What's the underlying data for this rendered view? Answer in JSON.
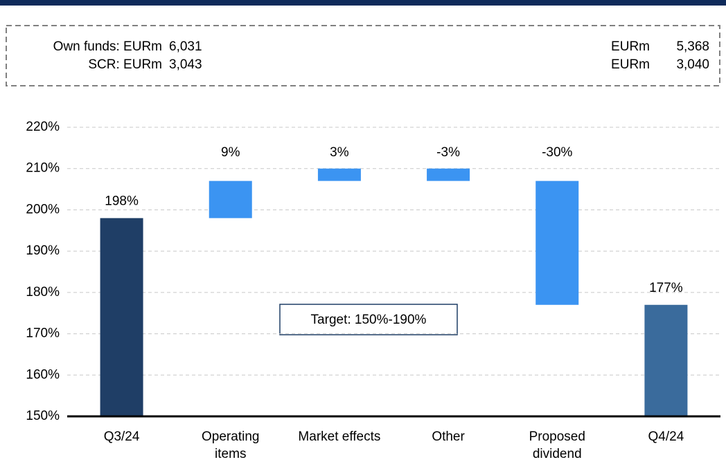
{
  "chart_data": {
    "type": "waterfall",
    "info_box": {
      "left": [
        {
          "label": "Own funds: EURm",
          "value": "6,031"
        },
        {
          "label": "SCR: EURm",
          "value": "3,043"
        }
      ],
      "right": [
        {
          "label": "EURm",
          "value": "5,368"
        },
        {
          "label": "EURm",
          "value": "3,040"
        }
      ]
    },
    "categories": [
      "Q3/24",
      "Operating\nitems",
      "Market effects",
      "Other",
      "Proposed\ndividend",
      "Q4/24"
    ],
    "values": [
      198,
      9,
      3,
      -3,
      -30,
      177
    ],
    "value_labels": [
      "198%",
      "9%",
      "3%",
      "-3%",
      "-30%",
      "177%"
    ],
    "total": [
      true,
      false,
      false,
      false,
      false,
      true
    ],
    "colors": [
      "#1f3e66",
      "#3b94f2",
      "#3b94f2",
      "#3b94f2",
      "#3b94f2",
      "#3a6b9c"
    ],
    "ylim": [
      150,
      220
    ],
    "yticks": [
      {
        "value": 150,
        "label": "150%"
      },
      {
        "value": 160,
        "label": "160%"
      },
      {
        "value": 170,
        "label": "170%"
      },
      {
        "value": 180,
        "label": "180%"
      },
      {
        "value": 190,
        "label": "190%"
      },
      {
        "value": 200,
        "label": "200%"
      },
      {
        "value": 210,
        "label": "210%"
      },
      {
        "value": 220,
        "label": "220%"
      }
    ],
    "grid": true,
    "annotation": "Target: 150%-190%"
  }
}
